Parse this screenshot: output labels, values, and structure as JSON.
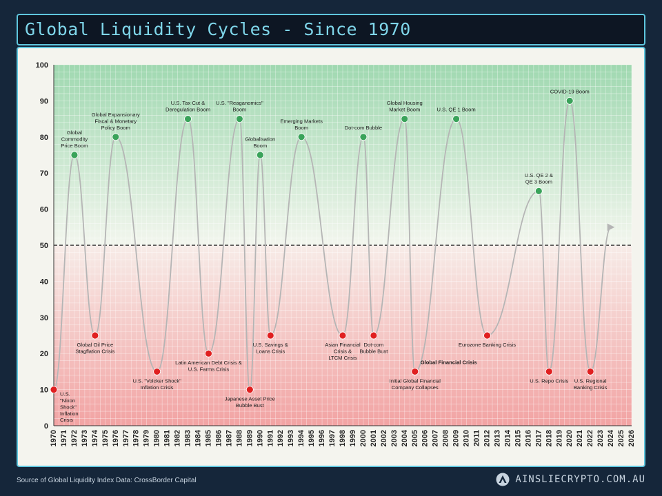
{
  "header": {
    "title": "Global Liquidity Cycles - Since 1970"
  },
  "footer": {
    "source": "Source of Global Liquidity Index Data: CrossBorder Capital",
    "brand": "AINSLIECRYPTO.COM.AU"
  },
  "colors": {
    "background": "#15263a",
    "title_accent": "#7fd6ea",
    "boom_marker": "#3aa35a",
    "crisis_marker": "#e02020",
    "upper_zone": "#bfe3c8",
    "lower_zone": "#f4b6b6",
    "threshold_line": "#333333",
    "cycle_line": "#b5b5b5"
  },
  "chart_data": {
    "type": "line",
    "title": "Global Liquidity Cycles - Since 1970",
    "ylim": [
      0,
      100
    ],
    "yticks": [
      0,
      10,
      20,
      30,
      40,
      50,
      60,
      70,
      80,
      90,
      100
    ],
    "xlim": [
      1970,
      2026
    ],
    "xticks": [
      "1970",
      "1971",
      "1972",
      "1973",
      "1974",
      "1975",
      "1976",
      "1977",
      "1978",
      "1979",
      "1980",
      "1981",
      "1982",
      "1983",
      "1984",
      "1985",
      "1986",
      "1987",
      "1988",
      "1989",
      "1990",
      "1991",
      "1992",
      "1993",
      "1994",
      "1995",
      "1996",
      "1997",
      "1998",
      "1999",
      "2000",
      "2001",
      "2002",
      "2003",
      "2004",
      "2005",
      "2006",
      "2007",
      "2008",
      "2009",
      "2010",
      "2011",
      "2012",
      "2013",
      "2014",
      "2015",
      "2016",
      "2017",
      "2018",
      "2019",
      "2020",
      "2021",
      "2022",
      "2023",
      "2024",
      "2025",
      "2026"
    ],
    "threshold": 50,
    "grid": true,
    "series": [
      {
        "x": [
          1970,
          1972,
          1974,
          1976,
          1980,
          1983,
          1985,
          1988,
          1989,
          1990,
          1991,
          1994,
          1998,
          2000,
          2001,
          2004,
          2005,
          2009,
          2012,
          2017,
          2018,
          2020,
          2022,
          2024
        ],
        "y": [
          10,
          75,
          25,
          80,
          15,
          85,
          20,
          85,
          10,
          75,
          25,
          80,
          25,
          80,
          25,
          85,
          15,
          85,
          25,
          65,
          15,
          90,
          15,
          55
        ]
      }
    ],
    "events": [
      {
        "x": 1970,
        "y": 10,
        "type": "crisis",
        "lines": [
          "U.S.",
          "\"Nixon",
          "Shock\"",
          "Inflation",
          "Crisis"
        ]
      },
      {
        "x": 1972,
        "y": 75,
        "type": "boom",
        "lines": [
          "Global",
          "Commodity",
          "Price Boom"
        ]
      },
      {
        "x": 1974,
        "y": 25,
        "type": "crisis",
        "lines": [
          "Global Oil Price",
          "Stagflation Crisis"
        ]
      },
      {
        "x": 1976,
        "y": 80,
        "type": "boom",
        "lines": [
          "Global Expansionary",
          "Fiscal & Monetary",
          "Policy Boom"
        ]
      },
      {
        "x": 1980,
        "y": 15,
        "type": "crisis",
        "lines": [
          "U.S. \"Volcker Shock\"",
          "Inflation Crisis"
        ]
      },
      {
        "x": 1983,
        "y": 85,
        "type": "boom",
        "lines": [
          "U.S. Tax Cut &",
          "Deregulation Boom"
        ]
      },
      {
        "x": 1985,
        "y": 20,
        "type": "crisis",
        "lines": [
          "Latin American Debt Crisis &",
          "U.S. Farms Crisis"
        ]
      },
      {
        "x": 1988,
        "y": 85,
        "type": "boom",
        "lines": [
          "U.S. \"Reaganomics\"",
          "Boom"
        ]
      },
      {
        "x": 1989,
        "y": 10,
        "type": "crisis",
        "lines": [
          "Japanese Asset Price",
          "Bubble Bust"
        ]
      },
      {
        "x": 1990,
        "y": 75,
        "type": "boom",
        "lines": [
          "Globalisation",
          "Boom"
        ]
      },
      {
        "x": 1991,
        "y": 25,
        "type": "crisis",
        "lines": [
          "U.S. Savings &",
          "Loans Crisis"
        ]
      },
      {
        "x": 1994,
        "y": 80,
        "type": "boom",
        "lines": [
          "Emerging Markets",
          "Boom"
        ]
      },
      {
        "x": 1998,
        "y": 25,
        "type": "crisis",
        "lines": [
          "Asian Financial",
          "Crisis &",
          "LTCM Crisis"
        ]
      },
      {
        "x": 2000,
        "y": 80,
        "type": "boom",
        "lines": [
          "Dot-com Bubble"
        ]
      },
      {
        "x": 2001,
        "y": 25,
        "type": "crisis",
        "lines": [
          "Dot-com",
          "Bubble Bust"
        ]
      },
      {
        "x": 2004,
        "y": 85,
        "type": "boom",
        "lines": [
          "Global Housing",
          "Market Boom"
        ]
      },
      {
        "x": 2005,
        "y": 15,
        "type": "crisis",
        "lines": [
          "Initial Global Financial",
          "Company Collapses"
        ],
        "side_label": "Global Financial Crisis"
      },
      {
        "x": 2009,
        "y": 85,
        "type": "boom",
        "lines": [
          "U.S. QE 1 Boom"
        ]
      },
      {
        "x": 2012,
        "y": 25,
        "type": "crisis",
        "lines": [
          "Eurozone Banking Crisis"
        ]
      },
      {
        "x": 2017,
        "y": 65,
        "type": "boom",
        "lines": [
          "U.S. QE 2 &",
          "QE 3 Boom"
        ]
      },
      {
        "x": 2018,
        "y": 15,
        "type": "crisis",
        "lines": [
          "U.S. Repo Crisis"
        ]
      },
      {
        "x": 2020,
        "y": 90,
        "type": "boom",
        "lines": [
          "COVID-19 Boom"
        ]
      },
      {
        "x": 2022,
        "y": 15,
        "type": "crisis",
        "lines": [
          "U.S. Regional",
          "Banking Crisis"
        ]
      }
    ]
  }
}
